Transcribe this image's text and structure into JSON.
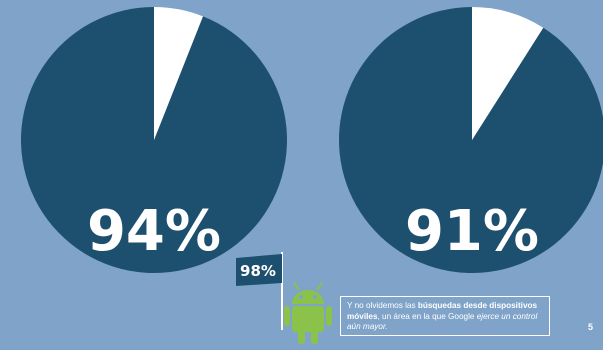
{
  "colors": {
    "background": "#7fa3c9",
    "pie_main": "#1d4f6e",
    "pie_rest": "#ffffff",
    "android": "#8bc34a",
    "flag": "#1d4f6e"
  },
  "chart_data": [
    {
      "type": "pie",
      "slices": [
        {
          "value": 94
        },
        {
          "value": 6
        }
      ],
      "label": "94%"
    },
    {
      "type": "pie",
      "slices": [
        {
          "value": 91
        },
        {
          "value": 9
        }
      ],
      "label": "91%"
    }
  ],
  "flag": {
    "label": "98%",
    "icon": "android-robot-icon"
  },
  "caption": {
    "part1": "Y no olvidemos las ",
    "bold1": "búsquedas desde dispositivos móviles",
    "part2": ", un área en la que Google ",
    "italic1": "ejerce un control aún mayor.",
    "text": "Y no olvidemos las búsquedas desde dispositivos móviles, un área en la que Google ejerce un control aún mayor."
  },
  "page_number": "5"
}
